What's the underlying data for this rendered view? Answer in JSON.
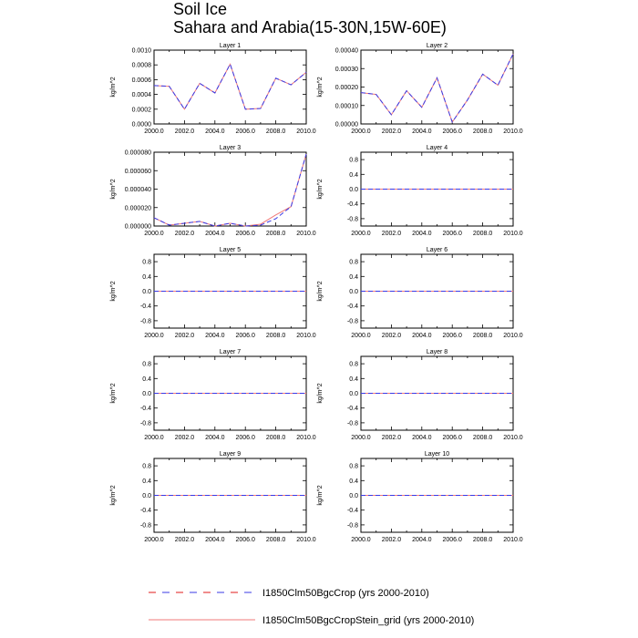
{
  "figure": {
    "title_line1": "Soil Ice",
    "title_line2": "Sahara and Arabia(15-30N,15W-60E)"
  },
  "colors": {
    "series_dashed": "#3a3ae6",
    "series_dashed_alt": "#e11b1b",
    "series_solid": "#f07a7a",
    "axis": "#000000"
  },
  "legend": {
    "entries": [
      {
        "label": "I1850Clm50BgcCrop (yrs 2000-2010)",
        "style": "dashed"
      },
      {
        "label": "I1850Clm50BgcCropStein_grid (yrs 2000-2010)",
        "style": "solid"
      }
    ]
  },
  "chart_data": [
    {
      "type": "line",
      "title": "Layer 1",
      "ylabel": "kg/m^2",
      "x": [
        2000,
        2001,
        2002,
        2003,
        2004,
        2005,
        2006,
        2007,
        2008,
        2009,
        2010
      ],
      "xticks": [
        "2000.0",
        "2002.0",
        "2004.0",
        "2006.0",
        "2008.0",
        "2010.0"
      ],
      "xlim": [
        2000,
        2010
      ],
      "ylim": [
        0,
        0.001
      ],
      "yticks": [
        0,
        0.0002,
        0.0004,
        0.0006,
        0.0008,
        0.001
      ],
      "yticklabels": [
        "0.0000",
        "0.0002",
        "0.0004",
        "0.0006",
        "0.0008",
        "0.0010"
      ],
      "series": [
        {
          "name": "I1850Clm50BgcCrop",
          "style": "dashed",
          "values": [
            0.00052,
            0.00051,
            0.0002,
            0.00055,
            0.00042,
            0.00081,
            0.0002,
            0.00021,
            0.00062,
            0.00053,
            0.0007
          ]
        },
        {
          "name": "I1850Clm50BgcCropStein_grid",
          "style": "solid",
          "values": [
            0.00052,
            0.00051,
            0.0002,
            0.00055,
            0.00042,
            0.00081,
            0.0002,
            0.00021,
            0.00062,
            0.00053,
            0.0007
          ]
        }
      ]
    },
    {
      "type": "line",
      "title": "Layer 2",
      "ylabel": "kg/m^2",
      "x": [
        2000,
        2001,
        2002,
        2003,
        2004,
        2005,
        2006,
        2007,
        2008,
        2009,
        2010
      ],
      "xticks": [
        "2000.0",
        "2002.0",
        "2004.0",
        "2006.0",
        "2008.0",
        "2010.0"
      ],
      "xlim": [
        2000,
        2010
      ],
      "ylim": [
        0,
        0.0004
      ],
      "yticks": [
        0,
        0.0001,
        0.0002,
        0.0003,
        0.0004
      ],
      "yticklabels": [
        "0.00000",
        "0.00010",
        "0.00020",
        "0.00030",
        "0.00040"
      ],
      "series": [
        {
          "name": "I1850Clm50BgcCrop",
          "style": "dashed",
          "values": [
            0.00017,
            0.00016,
            5e-05,
            0.00018,
            9e-05,
            0.00025,
            1e-05,
            0.00013,
            0.00027,
            0.00021,
            0.00038
          ]
        },
        {
          "name": "I1850Clm50BgcCropStein_grid",
          "style": "solid",
          "values": [
            0.00017,
            0.00016,
            5e-05,
            0.00018,
            9e-05,
            0.00025,
            1e-05,
            0.00013,
            0.00027,
            0.00021,
            0.00038
          ]
        }
      ]
    },
    {
      "type": "line",
      "title": "Layer 3",
      "ylabel": "kg/m^2",
      "x": [
        2000,
        2001,
        2002,
        2003,
        2004,
        2005,
        2006,
        2007,
        2008,
        2009,
        2010
      ],
      "xticks": [
        "2000.0",
        "2002.0",
        "2004.0",
        "2006.0",
        "2008.0",
        "2010.0"
      ],
      "xlim": [
        2000,
        2010
      ],
      "ylim": [
        0,
        8e-05
      ],
      "yticks": [
        0,
        2e-05,
        4e-05,
        6e-05,
        8e-05
      ],
      "yticklabels": [
        "0.000000",
        "0.000020",
        "0.000040",
        "0.000060",
        "0.000080"
      ],
      "series": [
        {
          "name": "I1850Clm50BgcCrop",
          "style": "dashed",
          "values": [
            9e-06,
            1e-06,
            3e-06,
            5e-06,
            0.0,
            3e-06,
            0.0,
            1e-06,
            8e-06,
            2.1e-05,
            7.8e-05
          ]
        },
        {
          "name": "I1850Clm50BgcCropStein_grid",
          "style": "solid",
          "values": [
            9e-06,
            1e-06,
            3e-06,
            5e-06,
            0.0,
            3e-06,
            0.0,
            2e-06,
            1.2e-05,
            2.1e-05,
            7.8e-05
          ]
        }
      ]
    },
    {
      "type": "line",
      "title": "Layer 4",
      "ylabel": "kg/m^2",
      "x": [
        2000,
        2001,
        2002,
        2003,
        2004,
        2005,
        2006,
        2007,
        2008,
        2009,
        2010
      ],
      "xticks": [
        "2000.0",
        "2002.0",
        "2004.0",
        "2006.0",
        "2008.0",
        "2010.0"
      ],
      "xlim": [
        2000,
        2010
      ],
      "ylim": [
        -1,
        1
      ],
      "yticks": [
        -0.8,
        -0.4,
        0,
        0.4,
        0.8
      ],
      "yticklabels": [
        "-0.8",
        "-0.4",
        "0.0",
        "0.4",
        "0.8"
      ],
      "series": [
        {
          "name": "I1850Clm50BgcCrop",
          "style": "dashed",
          "values": [
            0,
            0,
            0,
            0,
            0,
            0,
            0,
            0,
            0,
            0,
            0
          ]
        },
        {
          "name": "I1850Clm50BgcCropStein_grid",
          "style": "solid",
          "values": [
            0,
            0,
            0,
            0,
            0,
            0,
            0,
            0,
            0,
            0,
            0
          ]
        }
      ]
    },
    {
      "type": "line",
      "title": "Layer 5",
      "ylabel": "kg/m^2",
      "x": [
        2000,
        2001,
        2002,
        2003,
        2004,
        2005,
        2006,
        2007,
        2008,
        2009,
        2010
      ],
      "xticks": [
        "2000.0",
        "2002.0",
        "2004.0",
        "2006.0",
        "2008.0",
        "2010.0"
      ],
      "xlim": [
        2000,
        2010
      ],
      "ylim": [
        -1,
        1
      ],
      "yticks": [
        -0.8,
        -0.4,
        0,
        0.4,
        0.8
      ],
      "yticklabels": [
        "-0.8",
        "-0.4",
        "0.0",
        "0.4",
        "0.8"
      ],
      "series": [
        {
          "name": "I1850Clm50BgcCrop",
          "style": "dashed",
          "values": [
            0,
            0,
            0,
            0,
            0,
            0,
            0,
            0,
            0,
            0,
            0
          ]
        },
        {
          "name": "I1850Clm50BgcCropStein_grid",
          "style": "solid",
          "values": [
            0,
            0,
            0,
            0,
            0,
            0,
            0,
            0,
            0,
            0,
            0
          ]
        }
      ]
    },
    {
      "type": "line",
      "title": "Layer 6",
      "ylabel": "kg/m^2",
      "x": [
        2000,
        2001,
        2002,
        2003,
        2004,
        2005,
        2006,
        2007,
        2008,
        2009,
        2010
      ],
      "xticks": [
        "2000.0",
        "2002.0",
        "2004.0",
        "2006.0",
        "2008.0",
        "2010.0"
      ],
      "xlim": [
        2000,
        2010
      ],
      "ylim": [
        -1,
        1
      ],
      "yticks": [
        -0.8,
        -0.4,
        0,
        0.4,
        0.8
      ],
      "yticklabels": [
        "-0.8",
        "-0.4",
        "0.0",
        "0.4",
        "0.8"
      ],
      "series": [
        {
          "name": "I1850Clm50BgcCrop",
          "style": "dashed",
          "values": [
            0,
            0,
            0,
            0,
            0,
            0,
            0,
            0,
            0,
            0,
            0
          ]
        },
        {
          "name": "I1850Clm50BgcCropStein_grid",
          "style": "solid",
          "values": [
            0,
            0,
            0,
            0,
            0,
            0,
            0,
            0,
            0,
            0,
            0
          ]
        }
      ]
    },
    {
      "type": "line",
      "title": "Layer 7",
      "ylabel": "kg/m^2",
      "x": [
        2000,
        2001,
        2002,
        2003,
        2004,
        2005,
        2006,
        2007,
        2008,
        2009,
        2010
      ],
      "xticks": [
        "2000.0",
        "2002.0",
        "2004.0",
        "2006.0",
        "2008.0",
        "2010.0"
      ],
      "xlim": [
        2000,
        2010
      ],
      "ylim": [
        -1,
        1
      ],
      "yticks": [
        -0.8,
        -0.4,
        0,
        0.4,
        0.8
      ],
      "yticklabels": [
        "-0.8",
        "-0.4",
        "0.0",
        "0.4",
        "0.8"
      ],
      "series": [
        {
          "name": "I1850Clm50BgcCrop",
          "style": "dashed",
          "values": [
            0,
            0,
            0,
            0,
            0,
            0,
            0,
            0,
            0,
            0,
            0
          ]
        },
        {
          "name": "I1850Clm50BgcCropStein_grid",
          "style": "solid",
          "values": [
            0,
            0,
            0,
            0,
            0,
            0,
            0,
            0,
            0,
            0,
            0
          ]
        }
      ]
    },
    {
      "type": "line",
      "title": "Layer 8",
      "ylabel": "kg/m^2",
      "x": [
        2000,
        2001,
        2002,
        2003,
        2004,
        2005,
        2006,
        2007,
        2008,
        2009,
        2010
      ],
      "xticks": [
        "2000.0",
        "2002.0",
        "2004.0",
        "2006.0",
        "2008.0",
        "2010.0"
      ],
      "xlim": [
        2000,
        2010
      ],
      "ylim": [
        -1,
        1
      ],
      "yticks": [
        -0.8,
        -0.4,
        0,
        0.4,
        0.8
      ],
      "yticklabels": [
        "-0.8",
        "-0.4",
        "0.0",
        "0.4",
        "0.8"
      ],
      "series": [
        {
          "name": "I1850Clm50BgcCrop",
          "style": "dashed",
          "values": [
            0,
            0,
            0,
            0,
            0,
            0,
            0,
            0,
            0,
            0,
            0
          ]
        },
        {
          "name": "I1850Clm50BgcCropStein_grid",
          "style": "solid",
          "values": [
            0,
            0,
            0,
            0,
            0,
            0,
            0,
            0,
            0,
            0,
            0
          ]
        }
      ]
    },
    {
      "type": "line",
      "title": "Layer 9",
      "ylabel": "kg/m^2",
      "x": [
        2000,
        2001,
        2002,
        2003,
        2004,
        2005,
        2006,
        2007,
        2008,
        2009,
        2010
      ],
      "xticks": [
        "2000.0",
        "2002.0",
        "2004.0",
        "2006.0",
        "2008.0",
        "2010.0"
      ],
      "xlim": [
        2000,
        2010
      ],
      "ylim": [
        -1,
        1
      ],
      "yticks": [
        -0.8,
        -0.4,
        0,
        0.4,
        0.8
      ],
      "yticklabels": [
        "-0.8",
        "-0.4",
        "0.0",
        "0.4",
        "0.8"
      ],
      "series": [
        {
          "name": "I1850Clm50BgcCrop",
          "style": "dashed",
          "values": [
            0,
            0,
            0,
            0,
            0,
            0,
            0,
            0,
            0,
            0,
            0
          ]
        },
        {
          "name": "I1850Clm50BgcCropStein_grid",
          "style": "solid",
          "values": [
            0,
            0,
            0,
            0,
            0,
            0,
            0,
            0,
            0,
            0,
            0
          ]
        }
      ]
    },
    {
      "type": "line",
      "title": "Layer 10",
      "ylabel": "kg/m^2",
      "x": [
        2000,
        2001,
        2002,
        2003,
        2004,
        2005,
        2006,
        2007,
        2008,
        2009,
        2010
      ],
      "xticks": [
        "2000.0",
        "2002.0",
        "2004.0",
        "2006.0",
        "2008.0",
        "2010.0"
      ],
      "xlim": [
        2000,
        2010
      ],
      "ylim": [
        -1,
        1
      ],
      "yticks": [
        -0.8,
        -0.4,
        0,
        0.4,
        0.8
      ],
      "yticklabels": [
        "-0.8",
        "-0.4",
        "0.0",
        "0.4",
        "0.8"
      ],
      "series": [
        {
          "name": "I1850Clm50BgcCrop",
          "style": "dashed",
          "values": [
            0,
            0,
            0,
            0,
            0,
            0,
            0,
            0,
            0,
            0,
            0
          ]
        },
        {
          "name": "I1850Clm50BgcCropStein_grid",
          "style": "solid",
          "values": [
            0,
            0,
            0,
            0,
            0,
            0,
            0,
            0,
            0,
            0,
            0
          ]
        }
      ]
    }
  ]
}
